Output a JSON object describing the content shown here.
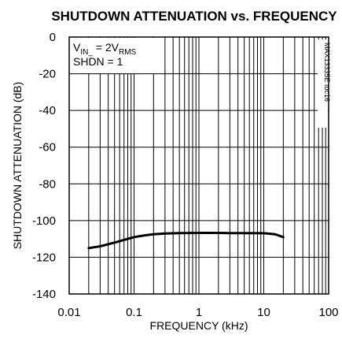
{
  "chart_data": {
    "type": "line",
    "title": "SHUTDOWN ATTENUATION vs. FREQUENCY",
    "xlabel": "FREQUENCY (kHz)",
    "ylabel": "SHUTDOWN ATTENUATION (dB)",
    "x_scale": "log",
    "xlim": [
      0.01,
      100
    ],
    "ylim": [
      -140,
      0
    ],
    "x_ticks": [
      "0.01",
      "0.1",
      "1",
      "10",
      "100"
    ],
    "y_ticks": [
      "0",
      "-20",
      "-40",
      "-60",
      "-80",
      "-100",
      "-120",
      "-140"
    ],
    "grid": true,
    "legend": "none",
    "annotations": {
      "line1_main": "V",
      "line1_sub": "IN_",
      "line1_mid": " = 2V",
      "line1_sub2": "RMS",
      "line2": "SHDN = 1"
    },
    "figure_id": "MAX13335E toc16",
    "series": [
      {
        "x": [
          0.02,
          0.03,
          0.05,
          0.08,
          0.1,
          0.15,
          0.2,
          0.3,
          0.5,
          1,
          2,
          3,
          5,
          10,
          15,
          20
        ],
        "y": [
          -115,
          -114,
          -112,
          -110,
          -109,
          -108,
          -107.5,
          -107,
          -106.8,
          -106.7,
          -106.7,
          -106.8,
          -106.8,
          -106.9,
          -107.5,
          -109
        ],
        "color": "#000000"
      }
    ]
  }
}
